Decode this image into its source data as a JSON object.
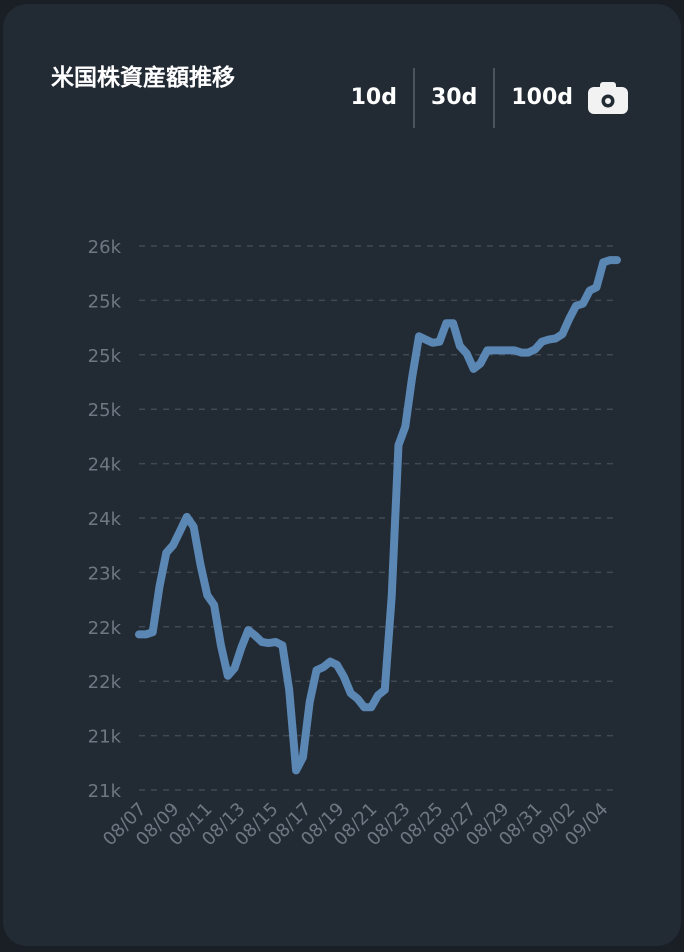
{
  "card": {
    "title": "米国株資産額推移",
    "ranges": [
      "10d",
      "30d",
      "100d"
    ],
    "camera_icon": "camera-icon"
  },
  "colors": {
    "background": "#222a34",
    "line": "#5b87b4",
    "grid": "#3f4853",
    "tick_text": "#6f7782"
  },
  "chart_data": {
    "type": "line",
    "title": "米国株資産額推移",
    "xlabel": "",
    "ylabel": "",
    "ylim": [
      20900,
      26000
    ],
    "y_ticks": [
      21000,
      21500,
      22000,
      22500,
      23000,
      23500,
      24000,
      24500,
      25000,
      25500,
      26000
    ],
    "y_tick_labels": [
      "21k",
      "21k",
      "22k",
      "22k",
      "23k",
      "24k",
      "24k",
      "25k",
      "25k",
      "25k",
      "26k"
    ],
    "x_tick_labels": [
      "08/07",
      "08/09",
      "08/11",
      "08/13",
      "08/15",
      "08/17",
      "08/19",
      "08/21",
      "08/23",
      "08/25",
      "08/27",
      "08/29",
      "08/31",
      "09/02",
      "09/04"
    ],
    "grid": true,
    "legend": "none",
    "series": [
      {
        "values": [
          22430,
          22430,
          22450,
          22870,
          23180,
          23250,
          23380,
          23510,
          23420,
          23070,
          22790,
          22700,
          22330,
          22050,
          22120,
          22310,
          22470,
          22420,
          22360,
          22350,
          22360,
          22330,
          21920,
          21180,
          21300,
          21810,
          22100,
          22130,
          22180,
          22150,
          22040,
          21890,
          21840,
          21760,
          21760,
          21870,
          21920,
          22780,
          24170,
          24340,
          24790,
          25170,
          25140,
          25110,
          25120,
          25290,
          25290,
          25080,
          25010,
          24870,
          24920,
          25040,
          25040,
          25040,
          25040,
          25040,
          25020,
          25020,
          25050,
          25120,
          25140,
          25150,
          25190,
          25330,
          25450,
          25470,
          25590,
          25620,
          25850,
          25870,
          25870
        ]
      }
    ]
  }
}
